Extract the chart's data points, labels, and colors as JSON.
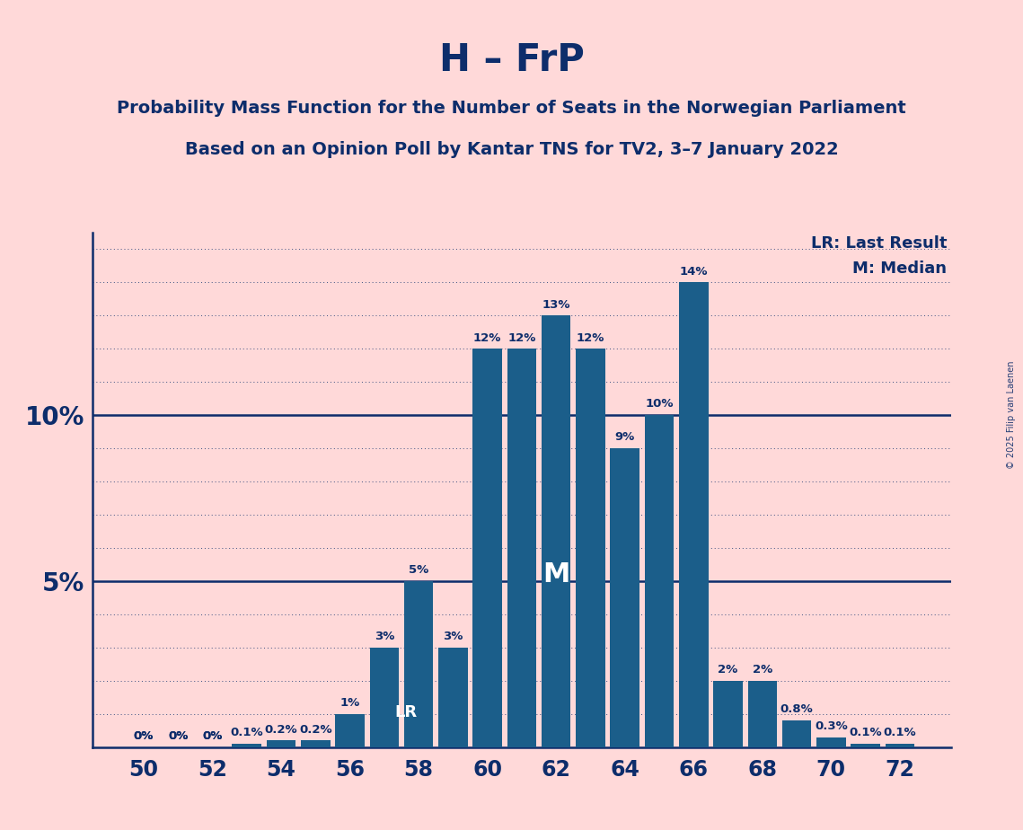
{
  "title": "H – FrP",
  "subtitle1": "Probability Mass Function for the Number of Seats in the Norwegian Parliament",
  "subtitle2": "Based on an Opinion Poll by Kantar TNS for TV2, 3–7 January 2022",
  "watermark": "© 2025 Filip van Laenen",
  "background_color": "#FFD9D9",
  "bar_color": "#1B5E8A",
  "text_color": "#0D2D6B",
  "categories": [
    50,
    51,
    52,
    53,
    54,
    55,
    56,
    57,
    58,
    59,
    60,
    61,
    62,
    63,
    64,
    65,
    66,
    67,
    68,
    69,
    70,
    71,
    72
  ],
  "values": [
    0.0,
    0.0,
    0.0,
    0.1,
    0.2,
    0.2,
    1.0,
    3.0,
    5.0,
    3.0,
    12.0,
    12.0,
    13.0,
    12.0,
    9.0,
    10.0,
    14.0,
    2.0,
    2.0,
    0.8,
    0.3,
    0.1,
    0.1
  ],
  "lr_seat": 57,
  "median_seat": 62,
  "legend_lr": "LR: Last Result",
  "legend_m": "M: Median"
}
